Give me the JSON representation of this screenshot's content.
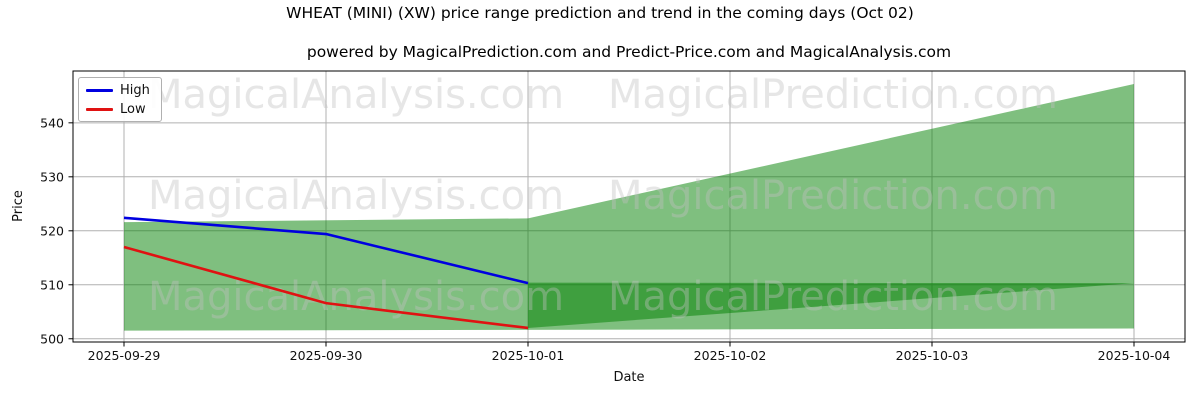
{
  "title": "WHEAT (MINI) (XW) price range prediction and trend in the coming days (Oct 02)",
  "subtitle": "powered by MagicalPrediction.com and Predict-Price.com and MagicalAnalysis.com",
  "watermarks": {
    "left_text": "MagicalAnalysis.com",
    "right_text": "MagicalPrediction.com",
    "color": "#c0c0c0",
    "opacity": 0.4
  },
  "chart_data": {
    "type": "line",
    "x": [
      "2025-09-29",
      "2025-09-30",
      "2025-10-01",
      "2025-10-02",
      "2025-10-03",
      "2025-10-04"
    ],
    "xlabel": "Date",
    "ylabel": "Price",
    "ylim": [
      499.4,
      549.6
    ],
    "yticks": [
      500,
      510,
      520,
      530,
      540
    ],
    "grid": true,
    "grid_color": "#b0b0b0",
    "legend_position": "upper left",
    "series": [
      {
        "name": "High",
        "color": "#0000e0",
        "dates": [
          "2025-09-29",
          "2025-09-30",
          "2025-10-01"
        ],
        "values": [
          522.4,
          519.4,
          510.3
        ]
      },
      {
        "name": "Low",
        "color": "#e01212",
        "dates": [
          "2025-09-29",
          "2025-09-30",
          "2025-10-01"
        ],
        "values": [
          517.0,
          506.6,
          502.0
        ]
      }
    ],
    "bands": [
      {
        "name": "prediction-range-band",
        "color": "#008000",
        "opacity": 0.5,
        "points": [
          [
            "2025-09-29",
            521.6
          ],
          [
            "2025-10-01",
            522.3
          ],
          [
            "2025-10-04",
            547.2
          ],
          [
            "2025-10-04",
            501.9
          ],
          [
            "2025-09-29",
            501.5
          ]
        ]
      },
      {
        "name": "overlap-wedge-band",
        "color": "#008000",
        "opacity": 0.5,
        "points": [
          [
            "2025-10-01",
            510.4
          ],
          [
            "2025-10-04",
            510.3
          ],
          [
            "2025-10-01",
            502.0
          ]
        ]
      }
    ]
  }
}
